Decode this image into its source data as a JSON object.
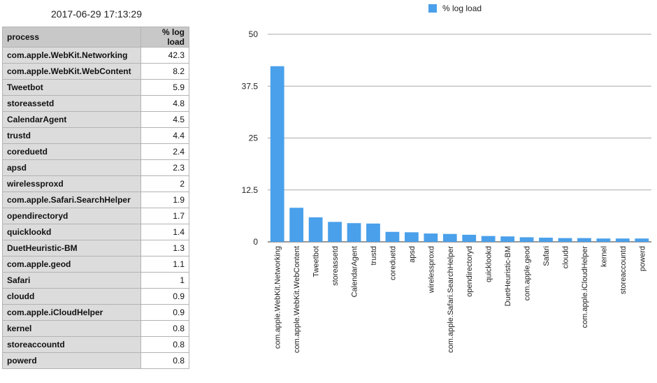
{
  "timestamp": "2017-06-29 17:13:29",
  "table": {
    "headers": [
      "process",
      "% log load"
    ],
    "rows": [
      [
        "com.apple.WebKit.Networking",
        "42.3"
      ],
      [
        "com.apple.WebKit.WebContent",
        "8.2"
      ],
      [
        "Tweetbot",
        "5.9"
      ],
      [
        "storeassetd",
        "4.8"
      ],
      [
        "CalendarAgent",
        "4.5"
      ],
      [
        "trustd",
        "4.4"
      ],
      [
        "coreduetd",
        "2.4"
      ],
      [
        "apsd",
        "2.3"
      ],
      [
        "wirelessproxd",
        "2"
      ],
      [
        "com.apple.Safari.SearchHelper",
        "1.9"
      ],
      [
        "opendirectoryd",
        "1.7"
      ],
      [
        "quicklookd",
        "1.4"
      ],
      [
        "DuetHeuristic-BM",
        "1.3"
      ],
      [
        "com.apple.geod",
        "1.1"
      ],
      [
        "Safari",
        "1"
      ],
      [
        "cloudd",
        "0.9"
      ],
      [
        "com.apple.iCloudHelper",
        "0.9"
      ],
      [
        "kernel",
        "0.8"
      ],
      [
        "storeaccountd",
        "0.8"
      ],
      [
        "powerd",
        "0.8"
      ]
    ]
  },
  "chart_data": {
    "type": "bar",
    "title": "",
    "xlabel": "",
    "ylabel": "",
    "legend": [
      "% log load"
    ],
    "legend_position": "top-center",
    "color": "#4aa0ea",
    "ylim": [
      0,
      50
    ],
    "yticks": [
      "0",
      "12.5",
      "25",
      "37.5",
      "50"
    ],
    "grid": true,
    "categories": [
      "com.apple.WebKit.Networking",
      "com.apple.WebKit.WebContent",
      "Tweetbot",
      "storeassetd",
      "CalendarAgent",
      "trustd",
      "coreduetd",
      "apsd",
      "wirelessproxd",
      "com.apple.Safari.SearchHelper",
      "opendirectoryd",
      "quicklookd",
      "DuetHeuristic-BM",
      "com.apple.geod",
      "Safari",
      "cloudd",
      "com.apple.iCloudHelper",
      "kernel",
      "storeaccountd",
      "powerd"
    ],
    "values": [
      42.3,
      8.2,
      5.9,
      4.8,
      4.5,
      4.4,
      2.4,
      2.3,
      2,
      1.9,
      1.7,
      1.4,
      1.3,
      1.1,
      1,
      0.9,
      0.9,
      0.8,
      0.8,
      0.8
    ]
  }
}
